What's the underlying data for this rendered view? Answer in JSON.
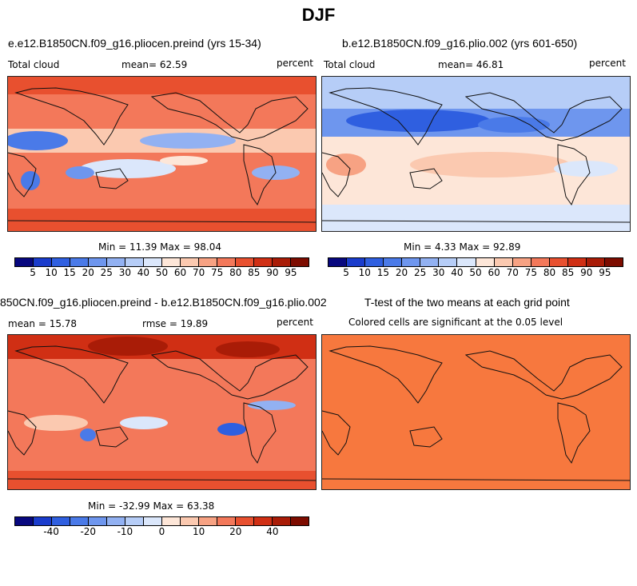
{
  "figure": {
    "title": "DJF"
  },
  "panels": [
    {
      "title": "e.e12.B1850CN.f09_g16.pliocen.preind (yrs 15-34)",
      "left_label": "Total cloud",
      "center_label": "mean=  62.59",
      "right_label": "percent",
      "stats": "Min =  11.39 Max =  98.04",
      "mean_value": 62.59,
      "min": 11.39,
      "max": 98.04
    },
    {
      "title": "b.e12.B1850CN.f09_g16.plio.002 (yrs 601-650)",
      "left_label": "Total cloud",
      "center_label": "mean=  46.81",
      "right_label": "percent",
      "stats": "Min =   4.33 Max =  92.89",
      "mean_value": 46.81,
      "min": 4.33,
      "max": 92.89
    },
    {
      "title": "850CN.f09_g16.pliocen.preind - b.e12.B1850CN.f09_g16.plio.002",
      "left_label": "mean =  15.78",
      "center_label": "rmse =  19.89",
      "right_label": "percent",
      "stats": "Min = -32.99 Max =  63.38",
      "mean_value": 15.78,
      "rmse": 19.89,
      "min": -32.99,
      "max": 63.38
    },
    {
      "title": "T-test of the two means at each grid point",
      "left_label": "Colored cells are significant at the 0.05 level"
    }
  ],
  "colorbars": {
    "abs_ticks": [
      "5",
      "10",
      "15",
      "20",
      "25",
      "30",
      "40",
      "50",
      "60",
      "70",
      "75",
      "80",
      "85",
      "90",
      "95"
    ],
    "diff_ticks": [
      "-40",
      "-20",
      "-10",
      "0",
      "10",
      "20",
      "40"
    ],
    "colors": [
      "#08087f",
      "#1a3ccc",
      "#2f5fe0",
      "#4a7ae8",
      "#6e96ee",
      "#92b1f2",
      "#b6cdf7",
      "#dbe7fb",
      "#fde6d8",
      "#fbc9b0",
      "#f7a283",
      "#f3785a",
      "#e8502f",
      "#d02f14",
      "#a91c07",
      "#7d0c00"
    ]
  }
}
